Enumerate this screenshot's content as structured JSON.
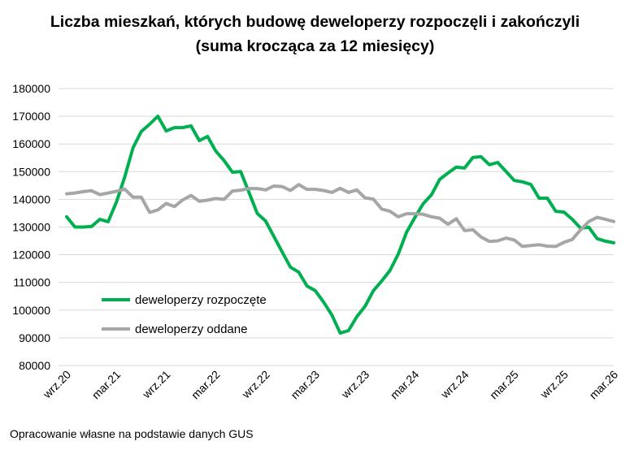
{
  "chart_data": {
    "type": "line",
    "title_line1": "Liczba mieszkań, których budowę deweloperzy rozpoczęli i zakończyli",
    "title_line2": "(suma krocząca za 12 miesięcy)",
    "xlabel": "",
    "ylabel": "",
    "ylim": [
      80000,
      180000
    ],
    "yticks": [
      "80000",
      "90000",
      "100000",
      "110000",
      "120000",
      "130000",
      "140000",
      "150000",
      "160000",
      "170000",
      "180000"
    ],
    "xtick_labels": [
      "wrz.20",
      "mar.21",
      "wrz.21",
      "mar.22",
      "wrz.22",
      "mar.23",
      "wrz.23",
      "mar.24",
      "wrz.24",
      "mar.25",
      "wrz.25",
      "mar.26"
    ],
    "grid": true,
    "legend_position": "lower-left inside",
    "series": [
      {
        "name": "deweloperzy rozpoczęte",
        "color": "#00b050",
        "values": [
          133700,
          130000,
          130000,
          130200,
          132800,
          131900,
          139000,
          148000,
          158600,
          164500,
          167100,
          170000,
          164700,
          165900,
          165900,
          166500,
          161200,
          162700,
          157400,
          154000,
          149800,
          150000,
          142500,
          134900,
          132200,
          126600,
          121000,
          115500,
          113700,
          108700,
          107000,
          102900,
          98200,
          91700,
          92600,
          97600,
          101400,
          107000,
          110500,
          114300,
          120200,
          128100,
          133400,
          138400,
          141600,
          147200,
          149500,
          151600,
          151300,
          155100,
          155400,
          152500,
          153300,
          150100,
          146800,
          146300,
          145400,
          140400,
          140400,
          135700,
          135400,
          132800,
          129600,
          129900,
          125800,
          124900,
          124300
        ]
      },
      {
        "name": "deweloperzy oddane",
        "color": "#a6a6a6",
        "values": [
          142000,
          142300,
          142800,
          143100,
          141700,
          142300,
          142900,
          143700,
          140800,
          140800,
          135300,
          136200,
          138500,
          137400,
          139800,
          141400,
          139300,
          139700,
          140300,
          140000,
          143000,
          143300,
          143900,
          143900,
          143400,
          144800,
          144600,
          143200,
          145300,
          143600,
          143600,
          143200,
          142500,
          144000,
          142500,
          143400,
          140500,
          140100,
          136500,
          135700,
          133700,
          134800,
          134800,
          134600,
          133700,
          133200,
          131000,
          133000,
          128700,
          129000,
          126400,
          124800,
          125000,
          126000,
          125300,
          123000,
          123300,
          123600,
          123100,
          123000,
          124500,
          125500,
          129000,
          132000,
          133500,
          132800,
          132000
        ]
      }
    ]
  },
  "footer": "Opracowanie własne na podstawie danych GUS"
}
